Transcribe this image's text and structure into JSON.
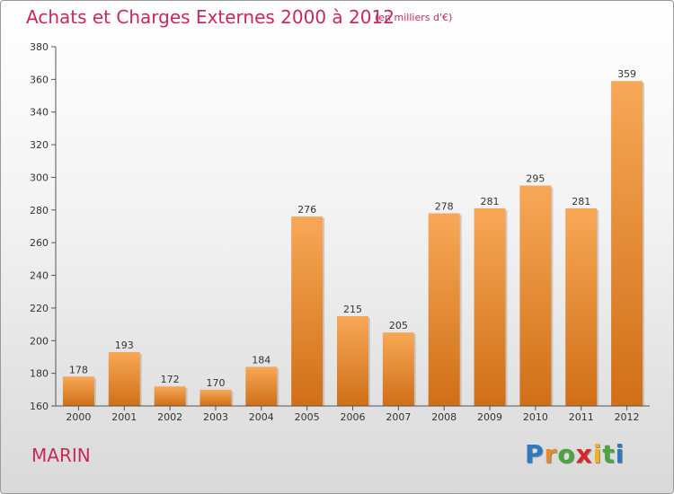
{
  "header": {
    "title": "Achats et Charges Externes 2000 à 2012",
    "subtitle": "(en milliers d'€)"
  },
  "footer": {
    "commune": "MARIN",
    "logo_letters": [
      "P",
      "r",
      "o",
      "x",
      "i",
      "t",
      "i"
    ],
    "logo_colors": [
      "#2f79c4",
      "#e88b2a",
      "#4aa53e",
      "#d8262b",
      "#f0b21e",
      "#4aa53e",
      "#2f79c4"
    ]
  },
  "chart_data": {
    "type": "bar",
    "title": "Achats et Charges Externes 2000 à 2012",
    "subtitle": "(en milliers d'€)",
    "categories": [
      "2000",
      "2001",
      "2002",
      "2003",
      "2004",
      "2005",
      "2006",
      "2007",
      "2008",
      "2009",
      "2010",
      "2011",
      "2012"
    ],
    "values": [
      178,
      193,
      172,
      170,
      184,
      276,
      215,
      205,
      278,
      281,
      295,
      281,
      359
    ],
    "ylim": [
      160,
      380
    ],
    "yticks": [
      160,
      180,
      200,
      220,
      240,
      260,
      280,
      300,
      320,
      340,
      360,
      380
    ],
    "grid": false,
    "bar_color_top": "#f7a857",
    "bar_color_bottom": "#d06f17"
  }
}
